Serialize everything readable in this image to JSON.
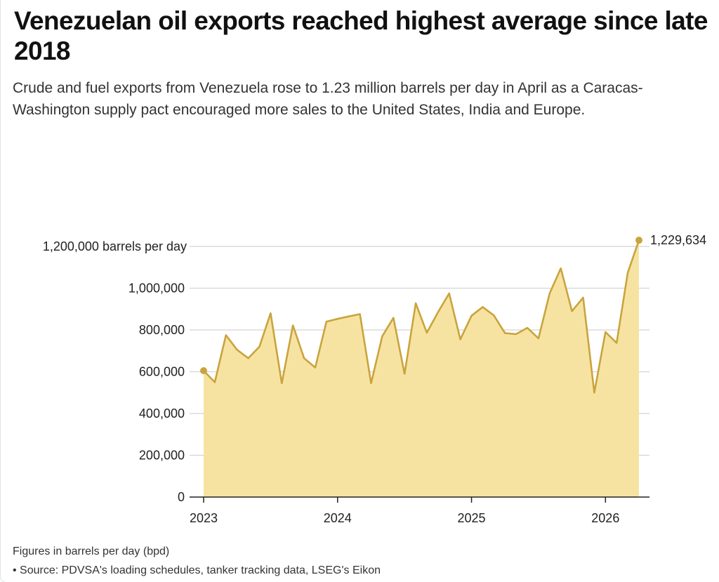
{
  "header": {
    "title": "Venezuelan oil exports reached highest average since late 2018",
    "subtitle": "Crude and fuel exports from Venezuela rose to 1.23 million barrels per day in April as a Caracas-Washington supply pact encouraged more sales to the United States, India and Europe."
  },
  "footer": {
    "note": "Figures in barrels per day (bpd)",
    "source": "• Source: PDVSA's loading schedules, tanker tracking data, LSEG's Eikon"
  },
  "colors": {
    "line": "#c9a43e",
    "fill": "#f7e3a1",
    "grid": "#d4d4d4",
    "axis": "#222222"
  },
  "chart_data": {
    "type": "area",
    "y_tick_labels": [
      "0",
      "200,000",
      "400,000",
      "600,000",
      "800,000",
      "1,000,000",
      "1,200,000 barrels per day"
    ],
    "y_ticks": [
      0,
      200000,
      400000,
      600000,
      800000,
      1000000,
      1200000
    ],
    "ylim": [
      0,
      1300000
    ],
    "x_tick_labels": [
      "2023",
      "2024",
      "2025",
      "2026"
    ],
    "x_ticks": [
      "2023-01",
      "2024-01",
      "2025-01",
      "2026-01"
    ],
    "xlim": [
      "2023-01",
      "2026-04"
    ],
    "grid": true,
    "end_label": "1,229,634",
    "series": [
      {
        "x": [
          "2023-01",
          "2023-02",
          "2023-03",
          "2023-04",
          "2023-05",
          "2023-06",
          "2023-07",
          "2023-08",
          "2023-09",
          "2023-10",
          "2023-11",
          "2023-12",
          "2024-01",
          "2024-02",
          "2024-03",
          "2024-04",
          "2024-05",
          "2024-06",
          "2024-07",
          "2024-08",
          "2024-09",
          "2024-10",
          "2024-11",
          "2024-12",
          "2025-01",
          "2025-02",
          "2025-03",
          "2025-04",
          "2025-05",
          "2025-06",
          "2025-07",
          "2025-08",
          "2025-09",
          "2025-10",
          "2025-11",
          "2025-12",
          "2026-01",
          "2026-02",
          "2026-03",
          "2026-04"
        ],
        "values": [
          605000,
          550000,
          775000,
          705000,
          665000,
          720000,
          880000,
          545000,
          822000,
          665000,
          620000,
          840000,
          853000,
          865000,
          876000,
          545000,
          770000,
          858000,
          590000,
          928000,
          787000,
          885000,
          975000,
          755000,
          868000,
          910000,
          870000,
          785000,
          780000,
          810000,
          760000,
          975000,
          1095000,
          890000,
          955000,
          500000,
          790000,
          738000,
          1075000,
          1229634
        ]
      }
    ]
  }
}
